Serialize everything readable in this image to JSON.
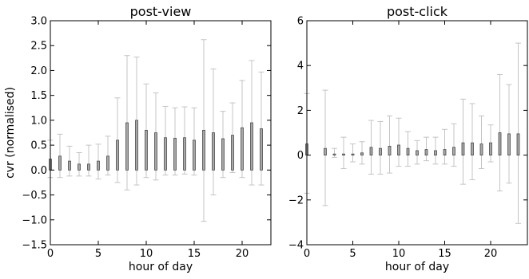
{
  "chart_data": [
    {
      "type": "bar",
      "title": "post-view",
      "xlabel": "hour of day",
      "ylabel": "cvr (normalised)",
      "xlim": [
        0,
        23
      ],
      "ylim": [
        -1.5,
        3.0
      ],
      "xticks": [
        0,
        5,
        10,
        15,
        20
      ],
      "yticks": [
        -1.5,
        -1.0,
        -0.5,
        0.0,
        0.5,
        1.0,
        1.5,
        2.0,
        2.5,
        3.0
      ],
      "ytick_labels": [
        "−1.5",
        "−1.0",
        "−0.5",
        "0.0",
        "0.5",
        "1.0",
        "1.5",
        "2.0",
        "2.5",
        "3.0"
      ],
      "grid": false,
      "x": [
        0,
        1,
        2,
        3,
        4,
        5,
        6,
        7,
        8,
        9,
        10,
        11,
        12,
        13,
        14,
        15,
        16,
        17,
        18,
        19,
        20,
        21,
        22
      ],
      "values": [
        0.22,
        0.28,
        0.18,
        0.12,
        0.12,
        0.18,
        0.28,
        0.6,
        0.95,
        1.0,
        0.8,
        0.75,
        0.65,
        0.64,
        0.65,
        0.6,
        0.8,
        0.75,
        0.63,
        0.7,
        0.85,
        0.95,
        0.83
      ],
      "err_low": [
        -0.15,
        -0.15,
        -0.12,
        -0.12,
        -0.12,
        -0.18,
        -0.1,
        -0.25,
        -0.4,
        -0.3,
        -0.15,
        -0.2,
        -0.1,
        -0.1,
        -0.08,
        -0.1,
        -1.03,
        -0.5,
        -0.15,
        -0.05,
        -0.15,
        -0.3,
        -0.3
      ],
      "err_high": [
        0.6,
        0.72,
        0.48,
        0.35,
        0.5,
        0.52,
        0.68,
        1.45,
        2.3,
        2.27,
        1.73,
        1.55,
        1.28,
        1.25,
        1.27,
        1.25,
        2.62,
        2.03,
        1.18,
        1.35,
        1.8,
        2.2,
        1.97
      ]
    },
    {
      "type": "bar",
      "title": "post-click",
      "xlabel": "hour of day",
      "ylabel": "",
      "xlim": [
        0,
        24
      ],
      "ylim": [
        -4,
        6
      ],
      "xticks": [
        0,
        5,
        10,
        15,
        20
      ],
      "yticks": [
        -4,
        -2,
        0,
        2,
        4,
        6
      ],
      "ytick_labels": [
        "−4",
        "−2",
        "0",
        "2",
        "4",
        "6"
      ],
      "grid": false,
      "x": [
        0,
        2,
        3,
        4,
        5,
        6,
        7,
        8,
        9,
        10,
        11,
        12,
        13,
        14,
        15,
        16,
        17,
        18,
        19,
        20,
        21,
        22,
        23
      ],
      "values": [
        0.5,
        0.3,
        0.05,
        0.05,
        0.05,
        0.1,
        0.35,
        0.3,
        0.4,
        0.45,
        0.3,
        0.2,
        0.25,
        0.2,
        0.25,
        0.35,
        0.55,
        0.55,
        0.5,
        0.55,
        1.0,
        0.95,
        0.95
      ],
      "err_low": [
        -1.7,
        -2.25,
        -0.1,
        -0.6,
        -0.3,
        -0.4,
        -0.85,
        -0.85,
        -0.8,
        -0.5,
        -0.5,
        -0.4,
        -0.25,
        -0.4,
        -0.4,
        -0.5,
        -1.3,
        -1.1,
        -0.6,
        -0.3,
        -1.6,
        -1.25,
        -3.05
      ],
      "err_high": [
        2.75,
        2.9,
        0.3,
        0.8,
        0.5,
        0.6,
        1.55,
        1.5,
        1.75,
        1.65,
        1.05,
        0.65,
        0.8,
        0.8,
        1.15,
        1.4,
        2.5,
        2.3,
        1.75,
        1.35,
        3.6,
        3.15,
        5.0
      ]
    }
  ]
}
